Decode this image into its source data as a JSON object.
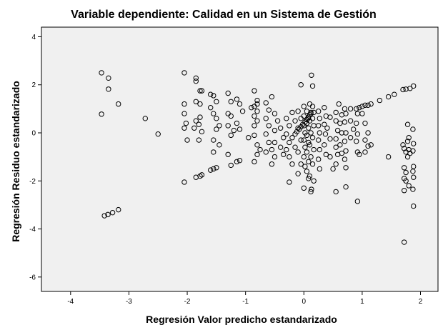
{
  "chart_data": {
    "type": "scatter",
    "title": "Variable dependiente: Calidad en un Sistema de Gestión",
    "xlabel": "Regresión Valor predicho estandarizado",
    "ylabel": "Regresión Residuo estandarizado",
    "xlim": [
      -4.5,
      2.3
    ],
    "ylim": [
      -6.6,
      4.4
    ],
    "xticks": [
      -4,
      -3,
      -2,
      -1,
      0,
      1,
      2
    ],
    "yticks": [
      -6,
      -4,
      -2,
      0,
      2,
      4
    ],
    "grid": false,
    "plot_background": "#f0f0f0",
    "marker": "open-circle",
    "marker_color": "#000000",
    "points": [
      [
        -3.47,
        2.5
      ],
      [
        -3.35,
        2.28
      ],
      [
        -3.35,
        1.82
      ],
      [
        -3.18,
        1.2
      ],
      [
        -3.47,
        0.78
      ],
      [
        -2.72,
        0.6
      ],
      [
        -2.5,
        -0.05
      ],
      [
        -3.42,
        -3.45
      ],
      [
        -3.36,
        -3.4
      ],
      [
        -3.28,
        -3.32
      ],
      [
        -3.18,
        -3.2
      ],
      [
        -2.05,
        2.5
      ],
      [
        -2.05,
        1.2
      ],
      [
        -2.05,
        0.8
      ],
      [
        -2.02,
        0.4
      ],
      [
        -2.05,
        0.2
      ],
      [
        -2.0,
        -0.3
      ],
      [
        -2.05,
        -2.05
      ],
      [
        -1.85,
        2.28
      ],
      [
        -1.85,
        2.15
      ],
      [
        -1.78,
        1.75
      ],
      [
        -1.75,
        1.75
      ],
      [
        -1.85,
        1.3
      ],
      [
        -1.78,
        1.2
      ],
      [
        -1.78,
        0.65
      ],
      [
        -1.85,
        0.5
      ],
      [
        -1.8,
        0.35
      ],
      [
        -1.88,
        0.2
      ],
      [
        -1.75,
        0.05
      ],
      [
        -1.8,
        -0.3
      ],
      [
        -1.85,
        -1.85
      ],
      [
        -1.78,
        -1.8
      ],
      [
        -1.75,
        -1.75
      ],
      [
        -1.6,
        1.6
      ],
      [
        -1.55,
        1.55
      ],
      [
        -1.5,
        1.3
      ],
      [
        -1.6,
        1.05
      ],
      [
        -1.55,
        0.8
      ],
      [
        -1.5,
        0.6
      ],
      [
        -1.45,
        0.3
      ],
      [
        -1.5,
        0.15
      ],
      [
        -1.55,
        -0.3
      ],
      [
        -1.45,
        -0.5
      ],
      [
        -1.55,
        -0.8
      ],
      [
        -1.6,
        -1.55
      ],
      [
        -1.55,
        -1.5
      ],
      [
        -1.5,
        -1.45
      ],
      [
        -1.3,
        1.65
      ],
      [
        -1.25,
        1.3
      ],
      [
        -1.3,
        0.8
      ],
      [
        -1.25,
        0.7
      ],
      [
        -1.3,
        0.3
      ],
      [
        -1.2,
        0.1
      ],
      [
        -1.25,
        -0.1
      ],
      [
        -1.3,
        -0.9
      ],
      [
        -1.25,
        -1.35
      ],
      [
        -1.15,
        -1.2
      ],
      [
        -1.1,
        -1.15
      ],
      [
        -1.15,
        1.4
      ],
      [
        -1.1,
        1.2
      ],
      [
        -1.05,
        0.9
      ],
      [
        -1.15,
        0.4
      ],
      [
        -1.1,
        0.15
      ],
      [
        -0.95,
        -0.2
      ],
      [
        -0.9,
        1.05
      ],
      [
        -0.8,
        1.2
      ],
      [
        -0.85,
        1.75
      ],
      [
        -0.8,
        1.35
      ],
      [
        -0.85,
        1.1
      ],
      [
        -0.8,
        0.9
      ],
      [
        -0.85,
        0.7
      ],
      [
        -0.8,
        0.5
      ],
      [
        -0.85,
        0.3
      ],
      [
        -0.85,
        -0.1
      ],
      [
        -0.8,
        -0.5
      ],
      [
        -0.75,
        -0.7
      ],
      [
        -0.8,
        -0.9
      ],
      [
        -0.85,
        -1.2
      ],
      [
        -0.65,
        1.25
      ],
      [
        -0.6,
        0.95
      ],
      [
        -0.65,
        0.6
      ],
      [
        -0.6,
        0.3
      ],
      [
        -0.65,
        -0.05
      ],
      [
        -0.6,
        -0.4
      ],
      [
        -0.65,
        -0.8
      ],
      [
        -0.55,
        1.5
      ],
      [
        -0.5,
        0.8
      ],
      [
        -0.5,
        0.1
      ],
      [
        -0.5,
        -0.4
      ],
      [
        -0.55,
        -0.7
      ],
      [
        -0.5,
        -1.0
      ],
      [
        -0.55,
        -1.3
      ],
      [
        -0.45,
        0.5
      ],
      [
        -0.4,
        0.2
      ],
      [
        -0.35,
        -0.2
      ],
      [
        -0.4,
        -0.6
      ],
      [
        -0.35,
        -0.9
      ],
      [
        -0.3,
        0.6
      ],
      [
        -0.25,
        0.3
      ],
      [
        -0.3,
        -0.05
      ],
      [
        -0.25,
        -0.4
      ],
      [
        -0.3,
        -0.7
      ],
      [
        -0.25,
        -1.0
      ],
      [
        -0.2,
        0.85
      ],
      [
        -0.15,
        0.5
      ],
      [
        -0.2,
        -0.2
      ],
      [
        -0.15,
        -0.6
      ],
      [
        -0.2,
        -1.3
      ],
      [
        -0.25,
        -2.05
      ],
      [
        -0.1,
        0.9
      ],
      [
        -0.05,
        0.6
      ],
      [
        -0.1,
        0.2
      ],
      [
        -0.05,
        -0.3
      ],
      [
        -0.1,
        -0.8
      ],
      [
        -0.05,
        -1.3
      ],
      [
        -0.1,
        -1.7
      ],
      [
        -0.05,
        2.0
      ],
      [
        0.0,
        1.1
      ],
      [
        0.0,
        0.7
      ],
      [
        0.0,
        0.3
      ],
      [
        0.02,
        0.0
      ],
      [
        0.0,
        -0.3
      ],
      [
        0.02,
        -0.6
      ],
      [
        0.0,
        -1.0
      ],
      [
        0.02,
        -1.4
      ],
      [
        0.0,
        -2.3
      ],
      [
        0.05,
        0.9
      ],
      [
        0.07,
        0.6
      ],
      [
        0.05,
        0.4
      ],
      [
        0.08,
        0.2
      ],
      [
        0.05,
        -0.1
      ],
      [
        0.08,
        -0.4
      ],
      [
        0.05,
        -0.8
      ],
      [
        0.08,
        -1.2
      ],
      [
        0.05,
        -1.6
      ],
      [
        0.08,
        -1.9
      ],
      [
        0.1,
        1.2
      ],
      [
        0.12,
        0.8
      ],
      [
        0.1,
        0.5
      ],
      [
        0.12,
        0.0
      ],
      [
        0.1,
        -0.5
      ],
      [
        0.12,
        -1.0
      ],
      [
        0.1,
        -1.8
      ],
      [
        0.13,
        -2.35
      ],
      [
        0.12,
        -2.45
      ],
      [
        0.13,
        2.4
      ],
      [
        0.15,
        1.95
      ],
      [
        0.15,
        1.1
      ],
      [
        0.17,
        0.85
      ],
      [
        0.15,
        0.6
      ],
      [
        0.17,
        0.3
      ],
      [
        0.15,
        -0.2
      ],
      [
        0.17,
        -0.7
      ],
      [
        0.15,
        -1.3
      ],
      [
        0.17,
        -2.0
      ],
      [
        -0.15,
        -0.05
      ],
      [
        -0.12,
        0.05
      ],
      [
        -0.08,
        0.15
      ],
      [
        -0.05,
        0.25
      ],
      [
        -0.02,
        0.35
      ],
      [
        0.02,
        0.45
      ],
      [
        0.05,
        0.55
      ],
      [
        0.08,
        0.65
      ],
      [
        0.1,
        0.75
      ],
      [
        0.12,
        0.85
      ],
      [
        0.25,
        0.9
      ],
      [
        0.27,
        0.6
      ],
      [
        0.25,
        0.3
      ],
      [
        0.27,
        0.0
      ],
      [
        0.25,
        -0.3
      ],
      [
        0.27,
        -0.7
      ],
      [
        0.25,
        -1.1
      ],
      [
        0.27,
        -1.5
      ],
      [
        0.35,
        1.05
      ],
      [
        0.38,
        0.7
      ],
      [
        0.35,
        0.35
      ],
      [
        0.37,
        -0.05
      ],
      [
        0.35,
        -0.5
      ],
      [
        0.38,
        -0.9
      ],
      [
        0.4,
        0.2
      ],
      [
        0.45,
        0.65
      ],
      [
        0.45,
        -0.25
      ],
      [
        0.45,
        -1.0
      ],
      [
        0.5,
        -1.5
      ],
      [
        0.55,
        0.85
      ],
      [
        0.55,
        0.5
      ],
      [
        0.58,
        0.1
      ],
      [
        0.55,
        -0.25
      ],
      [
        0.55,
        -0.6
      ],
      [
        0.58,
        -0.9
      ],
      [
        0.55,
        -1.3
      ],
      [
        0.55,
        -2.45
      ],
      [
        0.6,
        1.2
      ],
      [
        0.65,
        0.75
      ],
      [
        0.62,
        0.4
      ],
      [
        0.65,
        0.0
      ],
      [
        0.62,
        -0.5
      ],
      [
        0.65,
        -0.85
      ],
      [
        0.7,
        1.0
      ],
      [
        0.72,
        0.8
      ],
      [
        0.7,
        0.45
      ],
      [
        0.72,
        0.0
      ],
      [
        0.7,
        -0.35
      ],
      [
        0.72,
        -0.75
      ],
      [
        0.7,
        -1.1
      ],
      [
        0.72,
        -1.45
      ],
      [
        0.72,
        -2.25
      ],
      [
        0.8,
        1.0
      ],
      [
        0.8,
        0.5
      ],
      [
        0.85,
        0.15
      ],
      [
        0.8,
        -0.2
      ],
      [
        0.9,
        1.0
      ],
      [
        0.95,
        1.05
      ],
      [
        0.92,
        0.8
      ],
      [
        0.9,
        0.4
      ],
      [
        0.92,
        -0.05
      ],
      [
        0.9,
        -0.35
      ],
      [
        0.92,
        -0.8
      ],
      [
        0.95,
        -0.9
      ],
      [
        0.92,
        -2.85
      ],
      [
        1.0,
        1.1
      ],
      [
        1.05,
        1.15
      ],
      [
        1.1,
        1.15
      ],
      [
        1.15,
        1.2
      ],
      [
        1.0,
        0.8
      ],
      [
        1.05,
        0.4
      ],
      [
        1.1,
        0.0
      ],
      [
        1.05,
        -0.3
      ],
      [
        1.1,
        -0.55
      ],
      [
        1.15,
        -0.5
      ],
      [
        1.05,
        -0.8
      ],
      [
        1.3,
        1.35
      ],
      [
        1.45,
        1.5
      ],
      [
        1.55,
        1.6
      ],
      [
        1.45,
        -1.0
      ],
      [
        1.7,
        1.8
      ],
      [
        1.75,
        1.82
      ],
      [
        1.82,
        1.85
      ],
      [
        1.88,
        1.95
      ],
      [
        1.7,
        -0.5
      ],
      [
        1.72,
        -0.65
      ],
      [
        1.75,
        -0.8
      ],
      [
        1.72,
        -1.45
      ],
      [
        1.75,
        -1.65
      ],
      [
        1.72,
        -1.9
      ],
      [
        1.75,
        -2.0
      ],
      [
        1.72,
        -2.4
      ],
      [
        1.72,
        -4.55
      ],
      [
        1.78,
        0.35
      ],
      [
        1.8,
        -0.2
      ],
      [
        1.78,
        -0.35
      ],
      [
        1.8,
        -0.7
      ],
      [
        1.82,
        -0.85
      ],
      [
        1.78,
        -1.0
      ],
      [
        1.8,
        -2.2
      ],
      [
        1.87,
        0.15
      ],
      [
        1.88,
        -0.45
      ],
      [
        1.87,
        -0.75
      ],
      [
        1.88,
        -1.4
      ],
      [
        1.87,
        -1.6
      ],
      [
        1.88,
        -1.85
      ],
      [
        1.87,
        -2.35
      ],
      [
        1.88,
        -3.05
      ]
    ]
  }
}
